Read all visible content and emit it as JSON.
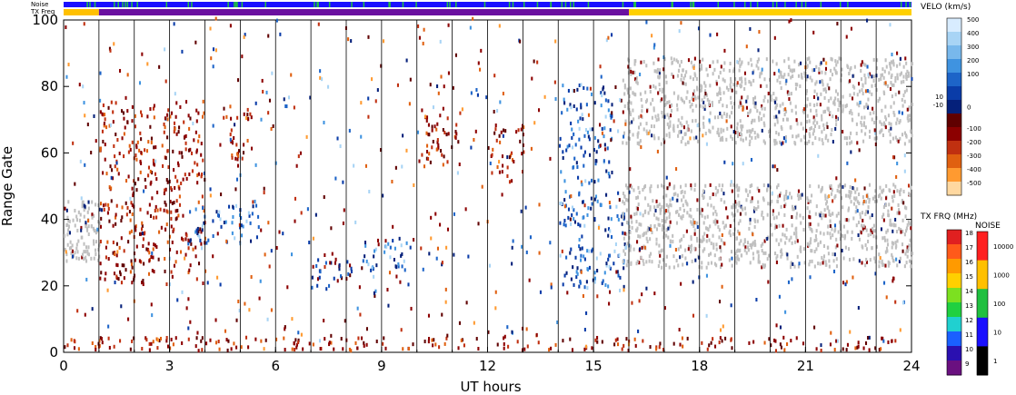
{
  "header": {
    "noise_label": "Noise",
    "txfreq_label": "TX Freq"
  },
  "chart_data": {
    "type": "heatmap",
    "xlabel": "UT hours",
    "ylabel": "Range Gate",
    "xlim": [
      0,
      24
    ],
    "ylim": [
      0,
      100
    ],
    "xticks": [
      0,
      3,
      6,
      9,
      12,
      15,
      18,
      21,
      24
    ],
    "yticks": [
      0,
      20,
      40,
      60,
      80,
      100
    ],
    "vertical_hour_lines": [
      1,
      2,
      3,
      4,
      5,
      6,
      7,
      8,
      9,
      10,
      11,
      12,
      13,
      14,
      15,
      16,
      17,
      18,
      19,
      20,
      21,
      22,
      23
    ],
    "ground_scatter_color": "#c0c0c0",
    "scatter_regions": [
      {
        "t0": 0.0,
        "t1": 1.0,
        "r0": 27,
        "r1": 45,
        "kind": "ground"
      },
      {
        "t0": 1.0,
        "t1": 4.0,
        "r0": 20,
        "r1": 75,
        "kind": "negative"
      },
      {
        "t0": 3.5,
        "t1": 5.5,
        "r0": 32,
        "r1": 44,
        "kind": "positive"
      },
      {
        "t0": 4.5,
        "t1": 5.3,
        "r0": 55,
        "r1": 73,
        "kind": "negative"
      },
      {
        "t0": 7.0,
        "t1": 8.5,
        "r0": 18,
        "r1": 28,
        "kind": "mixed"
      },
      {
        "t0": 8.5,
        "t1": 9.8,
        "r0": 24,
        "r1": 34,
        "kind": "positive"
      },
      {
        "t0": 10.0,
        "t1": 11.2,
        "r0": 55,
        "r1": 73,
        "kind": "negative"
      },
      {
        "t0": 12.0,
        "t1": 13.0,
        "r0": 52,
        "r1": 68,
        "kind": "negative"
      },
      {
        "t0": 14.0,
        "t1": 16.0,
        "r0": 18,
        "r1": 48,
        "kind": "positive"
      },
      {
        "t0": 14.0,
        "t1": 15.5,
        "r0": 50,
        "r1": 80,
        "kind": "positive"
      },
      {
        "t0": 15.8,
        "t1": 24.0,
        "r0": 25,
        "r1": 50,
        "kind": "ground"
      },
      {
        "t0": 15.8,
        "t1": 24.0,
        "r0": 62,
        "r1": 88,
        "kind": "ground"
      },
      {
        "t0": 0.0,
        "t1": 24.0,
        "r0": 0,
        "r1": 4,
        "kind": "negative"
      }
    ],
    "legend": {
      "velocity": {
        "title": "VELO (km/s)",
        "labels": [
          "500",
          "400",
          "300",
          "200",
          "100",
          "10",
          "0",
          "-10",
          "-100",
          "-200",
          "-300",
          "-400",
          "-500"
        ],
        "colors": [
          "#d8ecff",
          "#a8d4f5",
          "#78b8ec",
          "#3f93e0",
          "#1d64c8",
          "#0a3ca8",
          "#05207a",
          "#600000",
          "#8c0000",
          "#c03010",
          "#e06010",
          "#ff9a30",
          "#ffd8a0"
        ]
      },
      "tx_freq": {
        "title": "TX FRQ (MHz)",
        "labels": [
          "18",
          "17",
          "16",
          "15",
          "14",
          "13",
          "12",
          "11",
          "10",
          "9"
        ],
        "colors": [
          "#e02020",
          "#ff5a1a",
          "#ff9a00",
          "#ffd000",
          "#7ce020",
          "#20d040",
          "#20d0d0",
          "#1a60ff",
          "#2a10b0",
          "#6a1080"
        ]
      },
      "noise": {
        "title": "NOISE",
        "labels": [
          "10000",
          "1000",
          "100",
          "10",
          "1"
        ],
        "colors": [
          "#ff2020",
          "#ffc000",
          "#20c040",
          "#1a10ff",
          "#000000"
        ]
      }
    },
    "status_bars": {
      "noise": {
        "base_color": "#1a10ff",
        "accent_color": "#20c040"
      },
      "tx_freq": [
        {
          "from": 0.0,
          "to": 1.0,
          "color": "#ffc000"
        },
        {
          "from": 1.0,
          "to": 16.0,
          "color": "#6a10a0"
        },
        {
          "from": 16.0,
          "to": 24.0,
          "color": "#ffd000"
        }
      ]
    }
  }
}
